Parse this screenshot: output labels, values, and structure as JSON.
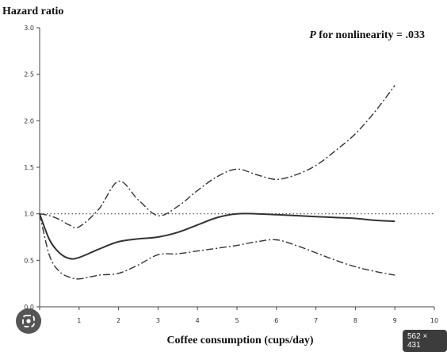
{
  "chart_data": {
    "type": "line",
    "ylabel": "Hazard ratio",
    "xlabel": "Coffee consumption (cups/day)",
    "annotation": {
      "italic": "P",
      "rest": " for nonlinearity = .033"
    },
    "xlim": [
      0,
      10
    ],
    "ylim": [
      0.0,
      3.0
    ],
    "x_ticks": [
      "0",
      "1",
      "2",
      "3",
      "4",
      "5",
      "6",
      "7",
      "8",
      "9",
      "10"
    ],
    "y_ticks": [
      "0.0",
      "0.5",
      "1.0",
      "1.5",
      "2.0",
      "2.5",
      "3.0"
    ],
    "reference_line": 1.0,
    "series": [
      {
        "style": "solid",
        "x": [
          0,
          0.25,
          0.5,
          0.75,
          1,
          1.5,
          2,
          2.5,
          3,
          3.5,
          4,
          4.5,
          5,
          5.5,
          6,
          6.5,
          7,
          7.5,
          8,
          8.5,
          9
        ],
        "y": [
          1.0,
          0.72,
          0.58,
          0.52,
          0.53,
          0.62,
          0.7,
          0.73,
          0.75,
          0.8,
          0.88,
          0.96,
          1.0,
          1.0,
          0.99,
          0.98,
          0.97,
          0.96,
          0.95,
          0.93,
          0.92
        ]
      },
      {
        "style": "dash-dot",
        "x": [
          0,
          0.25,
          0.5,
          0.75,
          1,
          1.5,
          2,
          2.5,
          3,
          3.5,
          4,
          4.5,
          5,
          5.5,
          6,
          6.5,
          7,
          7.5,
          8,
          8.5,
          9
        ],
        "y": [
          1.0,
          0.98,
          0.94,
          0.88,
          0.86,
          1.05,
          1.35,
          1.15,
          0.98,
          1.08,
          1.25,
          1.4,
          1.48,
          1.42,
          1.37,
          1.42,
          1.52,
          1.68,
          1.86,
          2.1,
          2.38
        ]
      },
      {
        "style": "dash-dot",
        "x": [
          0,
          0.25,
          0.5,
          0.75,
          1,
          1.5,
          2,
          2.5,
          3,
          3.5,
          4,
          4.5,
          5,
          5.5,
          6,
          6.5,
          7,
          7.5,
          8,
          8.5,
          9
        ],
        "y": [
          1.0,
          0.55,
          0.38,
          0.32,
          0.3,
          0.34,
          0.36,
          0.45,
          0.56,
          0.57,
          0.6,
          0.63,
          0.66,
          0.7,
          0.72,
          0.66,
          0.58,
          0.5,
          0.43,
          0.38,
          0.34
        ]
      }
    ]
  },
  "size_badge": "562 × 431",
  "icons": {
    "lens": "lens-icon"
  }
}
